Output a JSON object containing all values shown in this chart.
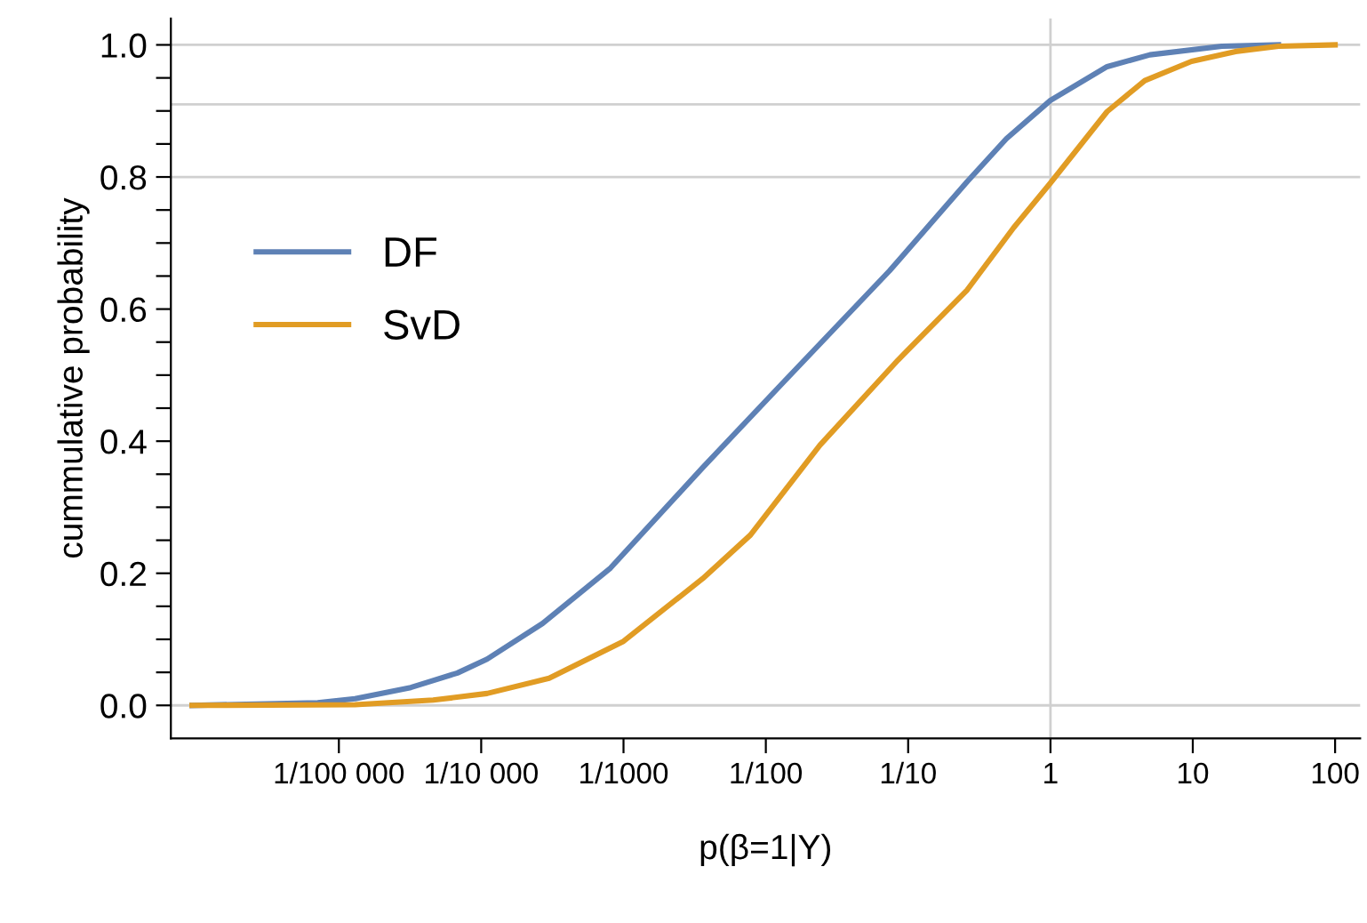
{
  "chart_data": {
    "type": "line",
    "xlabel": "p(β=1|Y)",
    "ylabel": "cummulative probability",
    "log": "x",
    "xlim": [
      6.6e-07,
      150
    ],
    "ylim": [
      -0.05,
      1.04
    ],
    "xticks": [
      {
        "value": 1e-05,
        "label": "1/100 000"
      },
      {
        "value": 0.0001,
        "label": "1/10 000"
      },
      {
        "value": 0.001,
        "label": "1/1000"
      },
      {
        "value": 0.01,
        "label": "1/100"
      },
      {
        "value": 0.1,
        "label": "1/10"
      },
      1,
      10,
      100
    ],
    "yticks": [
      {
        "value": 0,
        "label": "0.0"
      },
      {
        "value": 0.05,
        "label": null
      },
      {
        "value": 0.1,
        "label": null
      },
      {
        "value": 0.15,
        "label": null
      },
      {
        "value": 0.2,
        "label": "0.2"
      },
      {
        "value": 0.25,
        "label": null
      },
      {
        "value": 0.3,
        "label": null
      },
      {
        "value": 0.35,
        "label": null
      },
      {
        "value": 0.4,
        "label": "0.4"
      },
      {
        "value": 0.45,
        "label": null
      },
      {
        "value": 0.5,
        "label": null
      },
      {
        "value": 0.55,
        "label": null
      },
      {
        "value": 0.6,
        "label": "0.6"
      },
      {
        "value": 0.65,
        "label": null
      },
      {
        "value": 0.7,
        "label": null
      },
      {
        "value": 0.75,
        "label": null
      },
      {
        "value": 0.8,
        "label": "0.8"
      },
      {
        "value": 0.85,
        "label": null
      },
      {
        "value": 0.9,
        "label": null
      },
      {
        "value": 0.95,
        "label": null
      },
      {
        "value": 1.0,
        "label": "1.0"
      }
    ],
    "grid": false,
    "legend": "left",
    "ref_lines": [
      {
        "axis": "x",
        "value": 1,
        "color": "#d0d0d0"
      },
      {
        "axis": "y",
        "value": 0,
        "color": "#d0d0d0"
      },
      {
        "axis": "y",
        "value": 0.8,
        "color": "#d0d0d0"
      },
      {
        "axis": "y",
        "value": 0.91,
        "color": "#d0d0d0"
      },
      {
        "axis": "y",
        "value": 1.0,
        "color": "#d0d0d0"
      }
    ],
    "series": [
      {
        "name": "DF",
        "color": "#5e81b5",
        "x": [
          9.3e-07,
          7.1e-06,
          1.3e-05,
          3.2e-05,
          6.8e-05,
          0.00011,
          0.00027,
          0.00081,
          0.0036,
          0.013,
          0.074,
          0.26,
          0.49,
          1,
          2.5,
          5,
          16,
          40
        ],
        "values": [
          0,
          0.004,
          0.01,
          0.027,
          0.049,
          0.07,
          0.124,
          0.208,
          0.36,
          0.487,
          0.658,
          0.793,
          0.858,
          0.916,
          0.967,
          0.985,
          0.998,
          1.0
        ]
      },
      {
        "name": "SvD",
        "color": "#e19c24",
        "x": [
          9.3e-07,
          1.3e-05,
          4.6e-05,
          0.00011,
          0.0003,
          0.001,
          0.0036,
          0.0078,
          0.024,
          0.085,
          0.26,
          0.55,
          1,
          2.5,
          4.6,
          9.8,
          20,
          40,
          100
        ],
        "values": [
          0,
          0.001,
          0.008,
          0.018,
          0.041,
          0.097,
          0.192,
          0.258,
          0.394,
          0.523,
          0.629,
          0.723,
          0.791,
          0.899,
          0.946,
          0.975,
          0.99,
          0.998,
          1.0
        ]
      }
    ]
  }
}
